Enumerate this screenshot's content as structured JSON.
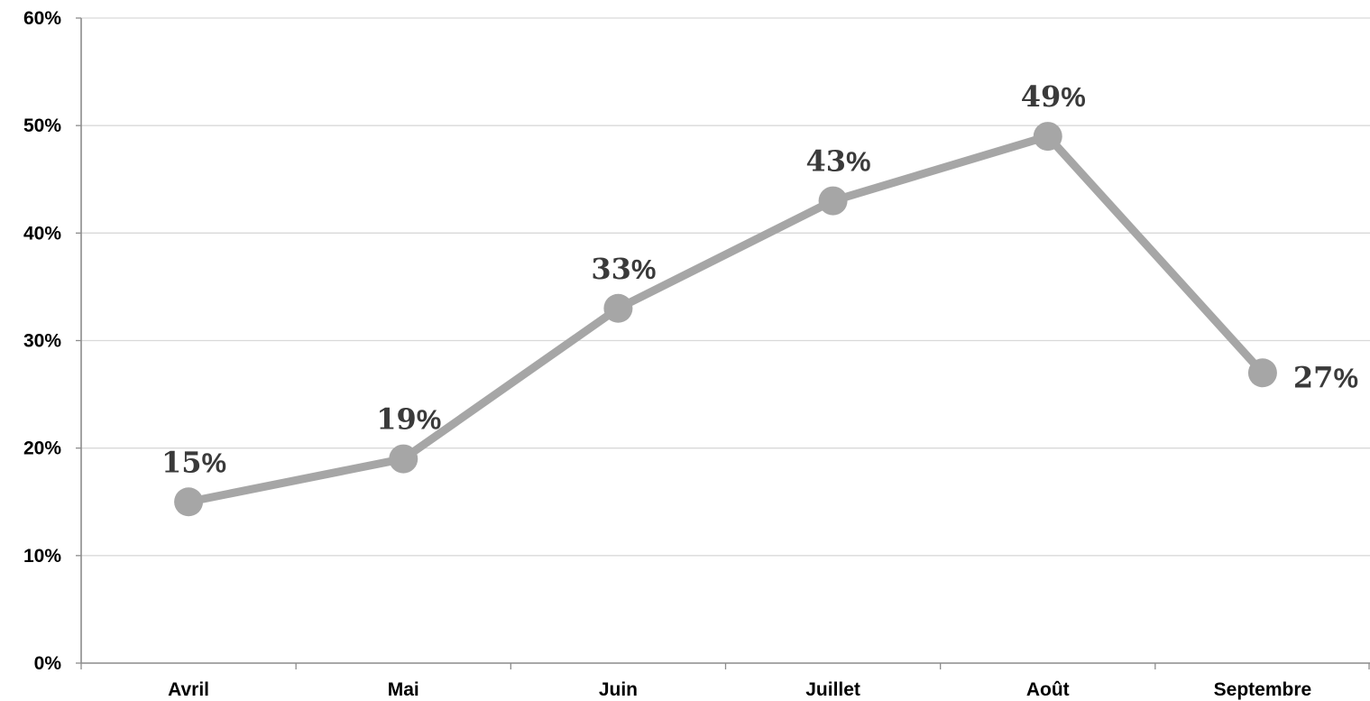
{
  "chart_data": {
    "type": "line",
    "title": "",
    "xlabel": "",
    "ylabel": "",
    "categories": [
      "Avril",
      "Mai",
      "Juin",
      "Juillet",
      "Août",
      "Septembre"
    ],
    "series": [
      {
        "values": [
          15,
          19,
          33,
          43,
          49,
          27
        ],
        "color": "#a6a6a6"
      }
    ],
    "data_labels": [
      "15",
      "19",
      "33",
      "43",
      "49",
      "27"
    ],
    "data_label_unit": "%",
    "ylim": [
      0,
      60
    ],
    "yticks": [
      0,
      10,
      20,
      30,
      40,
      50,
      60
    ],
    "ytick_labels": [
      "0%",
      "10%",
      "20%",
      "30%",
      "40%",
      "50%",
      "60%"
    ],
    "grid": "horizontal",
    "legend": "none"
  }
}
